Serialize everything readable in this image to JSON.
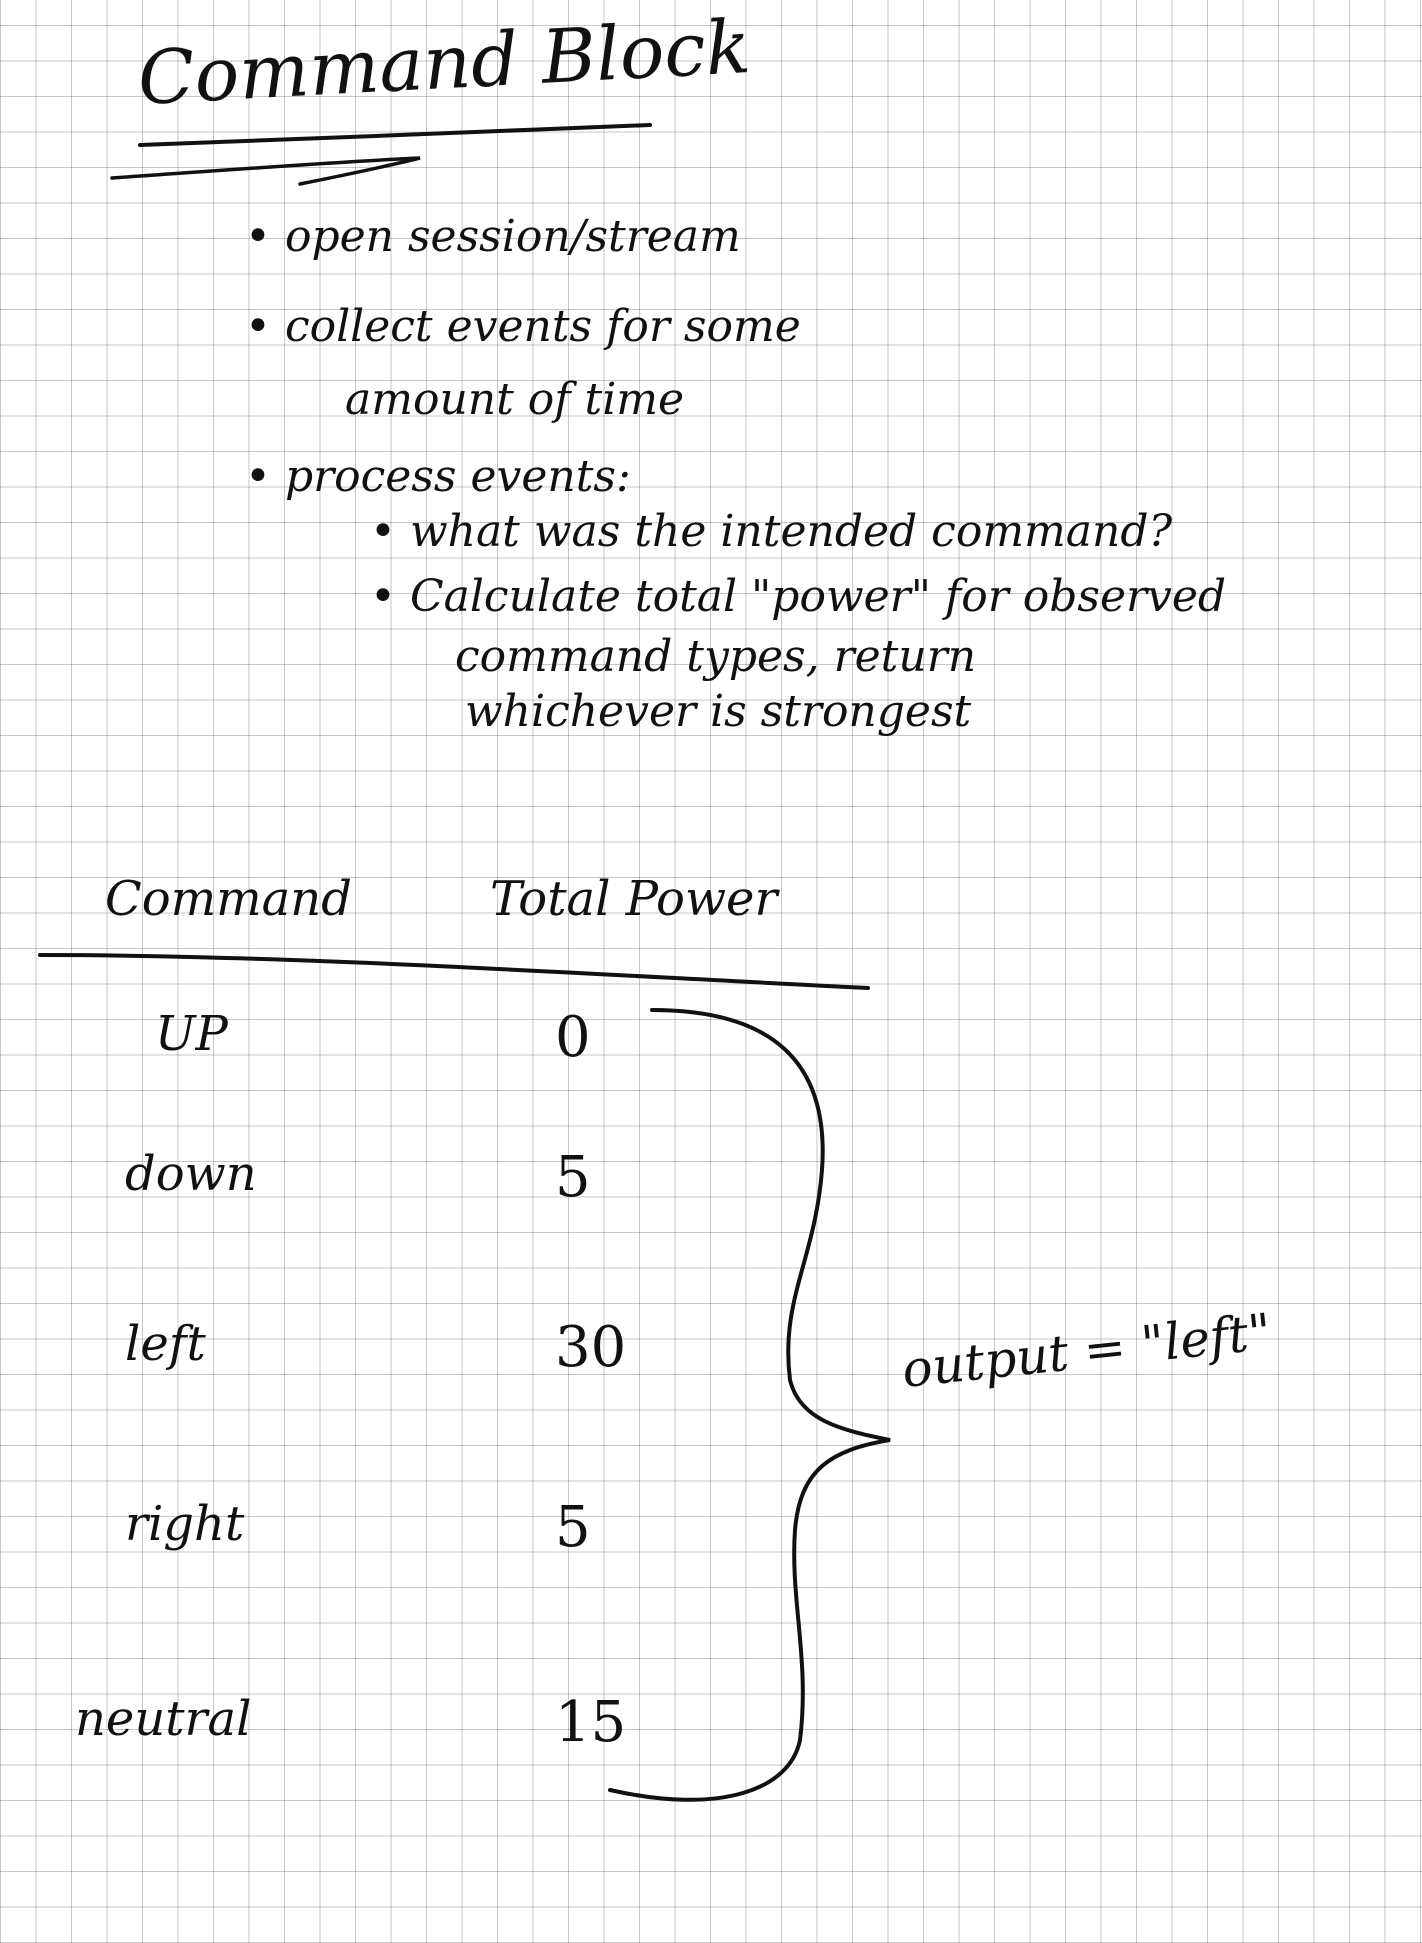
{
  "title": "Command Block",
  "bullets": [
    {
      "marker": "•",
      "text": "open session/stream"
    },
    {
      "marker": "•",
      "text": "collect events for some",
      "continuation": "amount of time"
    },
    {
      "marker": "•",
      "text": "process events:",
      "sub": [
        {
          "marker": "•",
          "text": "what was the intended command?"
        },
        {
          "marker": "•",
          "text": "Calculate total \"power\" for observed",
          "continuation": [
            "command types, return",
            "whichever is strongest"
          ]
        }
      ]
    }
  ],
  "table": {
    "headers": [
      "Command",
      "Total Power"
    ],
    "rows": [
      {
        "command": "UP",
        "power": "0"
      },
      {
        "command": "down",
        "power": "5"
      },
      {
        "command": "left",
        "power": "30"
      },
      {
        "command": "right",
        "power": "5"
      },
      {
        "command": "neutral",
        "power": "15"
      }
    ]
  },
  "output": "output = \"left\""
}
